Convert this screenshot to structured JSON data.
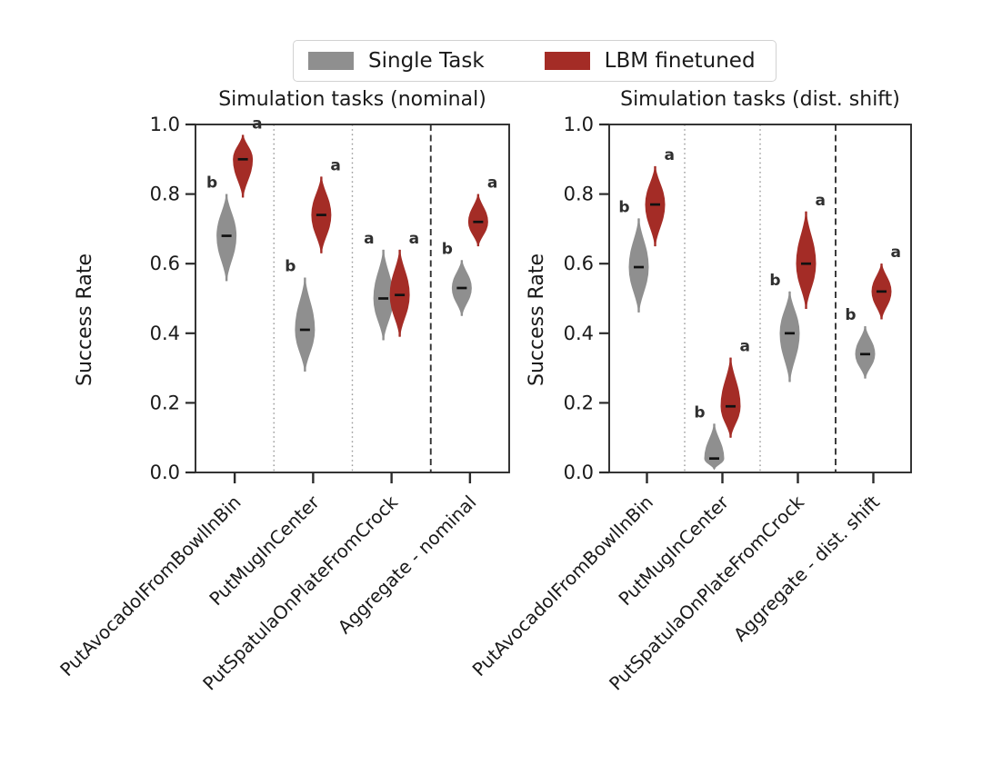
{
  "legend": {
    "items": [
      {
        "label": "Single Task",
        "color": "#8f8f8f"
      },
      {
        "label": "LBM finetuned",
        "color": "#a42c26"
      }
    ]
  },
  "colors": {
    "single_task": "#8f8f8f",
    "lbm_finetuned": "#a42c26",
    "median_marker": "#111111",
    "sig_letter": "#2f2f2f",
    "axis": "#2b2b2b",
    "dotted_separator": "#9a9a9a",
    "dashed_separator": "#333333"
  },
  "chart_data": [
    {
      "type": "violin",
      "title": "Simulation tasks (nominal)",
      "ylabel": "Success Rate",
      "ylim": [
        0.0,
        1.0
      ],
      "yticks": [
        "0.0",
        "0.2",
        "0.4",
        "0.6",
        "0.8",
        "1.0"
      ],
      "grid": false,
      "legend_position": "top-center-shared",
      "series": [
        {
          "name": "Single Task",
          "color": "#8f8f8f"
        },
        {
          "name": "LBM finetuned",
          "color": "#a42c26"
        }
      ],
      "categories": [
        "PutAvocadoIFromBowlInBin",
        "PutMugInCenter",
        "PutSpatulaOnPlateFromCrock",
        "Aggregate - nominal"
      ],
      "groups": [
        {
          "category": "PutAvocadoIFromBowlInBin",
          "single_task": {
            "median": 0.68,
            "min": 0.55,
            "max": 0.8,
            "sig_label": "b"
          },
          "lbm_finetuned": {
            "median": 0.9,
            "min": 0.79,
            "max": 0.97,
            "sig_label": "a"
          }
        },
        {
          "category": "PutMugInCenter",
          "single_task": {
            "median": 0.41,
            "min": 0.29,
            "max": 0.56,
            "sig_label": "b"
          },
          "lbm_finetuned": {
            "median": 0.74,
            "min": 0.63,
            "max": 0.85,
            "sig_label": "a"
          }
        },
        {
          "category": "PutSpatulaOnPlateFromCrock",
          "single_task": {
            "median": 0.5,
            "min": 0.38,
            "max": 0.64,
            "sig_label": "a"
          },
          "lbm_finetuned": {
            "median": 0.51,
            "min": 0.39,
            "max": 0.64,
            "sig_label": "a"
          }
        },
        {
          "category": "Aggregate - nominal",
          "single_task": {
            "median": 0.53,
            "min": 0.45,
            "max": 0.61,
            "sig_label": "b"
          },
          "lbm_finetuned": {
            "median": 0.72,
            "min": 0.65,
            "max": 0.8,
            "sig_label": "a"
          }
        }
      ],
      "separators": [
        {
          "between": [
            0,
            1
          ],
          "style": "dotted"
        },
        {
          "between": [
            1,
            2
          ],
          "style": "dotted"
        },
        {
          "between": [
            2,
            3
          ],
          "style": "dashed"
        }
      ]
    },
    {
      "type": "violin",
      "title": "Simulation tasks (dist. shift)",
      "ylabel": "Success Rate",
      "ylim": [
        0.0,
        1.0
      ],
      "yticks": [
        "0.0",
        "0.2",
        "0.4",
        "0.6",
        "0.8",
        "1.0"
      ],
      "grid": false,
      "legend_position": "top-center-shared",
      "series": [
        {
          "name": "Single Task",
          "color": "#8f8f8f"
        },
        {
          "name": "LBM finetuned",
          "color": "#a42c26"
        }
      ],
      "categories": [
        "PutAvocadoIFromBowlInBin",
        "PutMugInCenter",
        "PutSpatulaOnPlateFromCrock",
        "Aggregate - dist. shift"
      ],
      "groups": [
        {
          "category": "PutAvocadoIFromBowlInBin",
          "single_task": {
            "median": 0.59,
            "min": 0.46,
            "max": 0.73,
            "sig_label": "b"
          },
          "lbm_finetuned": {
            "median": 0.77,
            "min": 0.65,
            "max": 0.88,
            "sig_label": "a"
          }
        },
        {
          "category": "PutMugInCenter",
          "single_task": {
            "median": 0.04,
            "min": 0.01,
            "max": 0.14,
            "sig_label": "b"
          },
          "lbm_finetuned": {
            "median": 0.19,
            "min": 0.1,
            "max": 0.33,
            "sig_label": "a"
          }
        },
        {
          "category": "PutSpatulaOnPlateFromCrock",
          "single_task": {
            "median": 0.4,
            "min": 0.26,
            "max": 0.52,
            "sig_label": "b"
          },
          "lbm_finetuned": {
            "median": 0.6,
            "min": 0.47,
            "max": 0.75,
            "sig_label": "a"
          }
        },
        {
          "category": "Aggregate - dist. shift",
          "single_task": {
            "median": 0.34,
            "min": 0.27,
            "max": 0.42,
            "sig_label": "b"
          },
          "lbm_finetuned": {
            "median": 0.52,
            "min": 0.44,
            "max": 0.6,
            "sig_label": "a"
          }
        }
      ],
      "separators": [
        {
          "between": [
            0,
            1
          ],
          "style": "dotted"
        },
        {
          "between": [
            1,
            2
          ],
          "style": "dotted"
        },
        {
          "between": [
            2,
            3
          ],
          "style": "dashed"
        }
      ]
    }
  ]
}
